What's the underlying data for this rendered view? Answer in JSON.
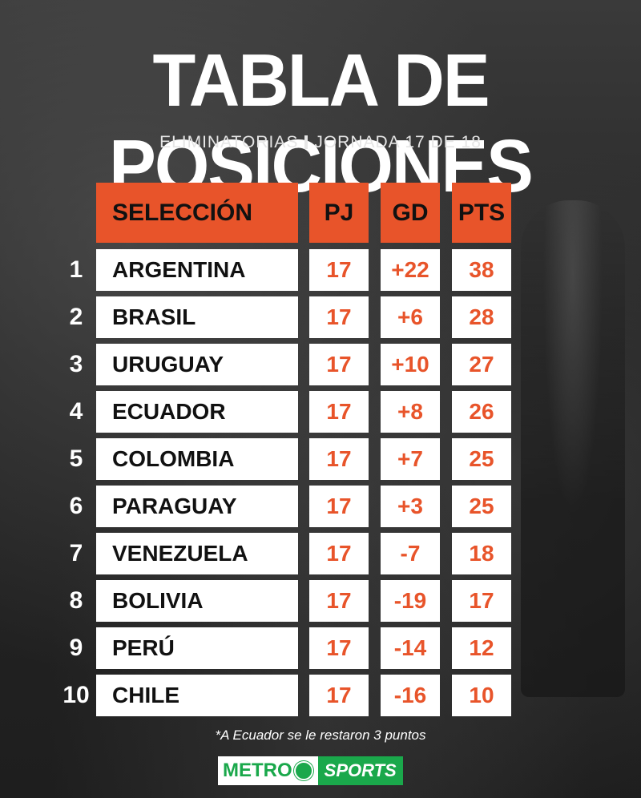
{
  "header": {
    "title": "TABLA DE POSICIONES",
    "subtitle_left": "ELIMINATORIAS",
    "subtitle_right": "JORNADA 17 DE 18"
  },
  "table": {
    "columns": {
      "team": "SELECCIÓN",
      "pj": "PJ",
      "gd": "GD",
      "pts": "PTS"
    },
    "rows": [
      {
        "pos": "1",
        "team": "ARGENTINA",
        "pj": "17",
        "gd": "+22",
        "pts": "38"
      },
      {
        "pos": "2",
        "team": "BRASIL",
        "pj": "17",
        "gd": "+6",
        "pts": "28"
      },
      {
        "pos": "3",
        "team": "URUGUAY",
        "pj": "17",
        "gd": "+10",
        "pts": "27"
      },
      {
        "pos": "4",
        "team": "ECUADOR",
        "pj": "17",
        "gd": "+8",
        "pts": "26"
      },
      {
        "pos": "5",
        "team": "COLOMBIA",
        "pj": "17",
        "gd": "+7",
        "pts": "25"
      },
      {
        "pos": "6",
        "team": "PARAGUAY",
        "pj": "17",
        "gd": "+3",
        "pts": "25"
      },
      {
        "pos": "7",
        "team": "VENEZUELA",
        "pj": "17",
        "gd": "-7",
        "pts": "18"
      },
      {
        "pos": "8",
        "team": "BOLIVIA",
        "pj": "17",
        "gd": "-19",
        "pts": "17"
      },
      {
        "pos": "9",
        "team": "PERÚ",
        "pj": "17",
        "gd": "-14",
        "pts": "12"
      },
      {
        "pos": "10",
        "team": "CHILE",
        "pj": "17",
        "gd": "-16",
        "pts": "10"
      }
    ]
  },
  "footnote": "*A Ecuador se le restaron 3 puntos",
  "logo": {
    "part1": "METRO",
    "part2": "SPORTS"
  },
  "colors": {
    "accent": "#e8542a",
    "logo_green": "#1aa84b"
  }
}
